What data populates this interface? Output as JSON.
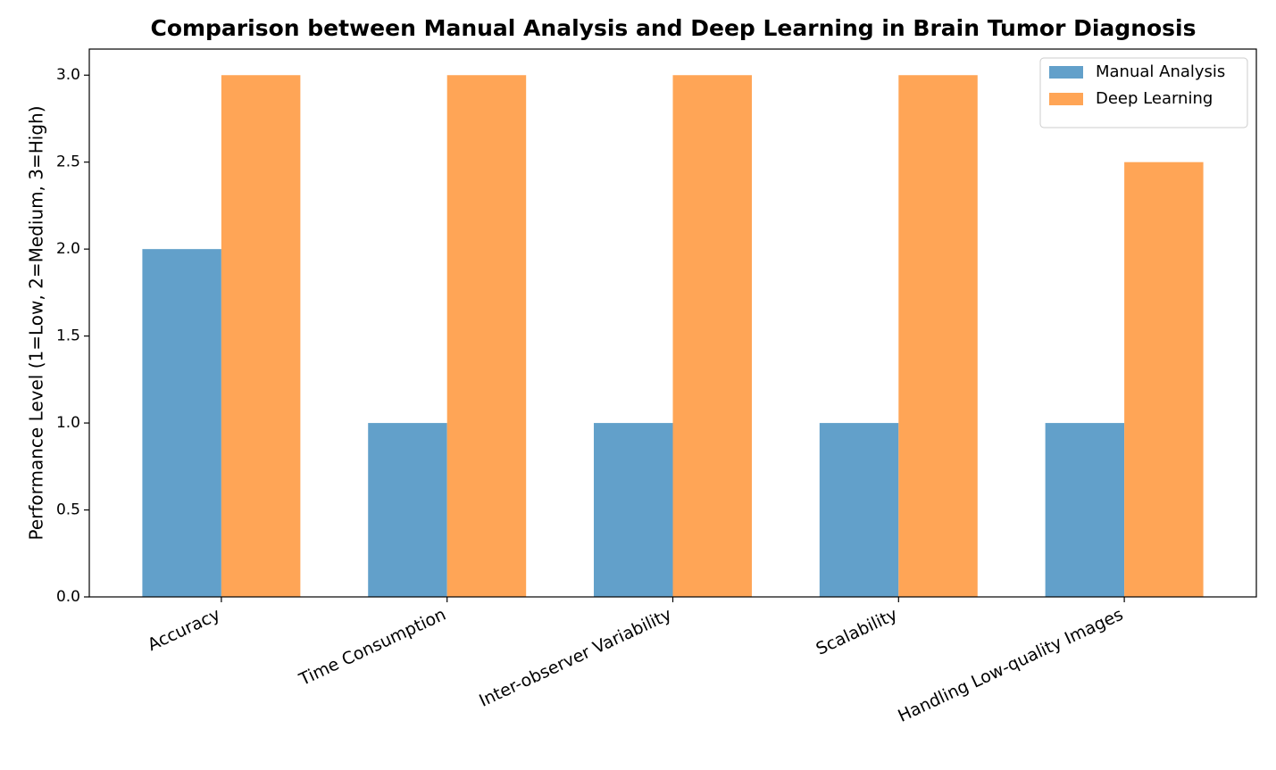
{
  "chart_data": {
    "type": "bar",
    "title": "Comparison between Manual Analysis and Deep Learning in Brain Tumor Diagnosis",
    "y_label": "Performance Level (1=Low, 2=Medium, 3=High)",
    "categories": [
      "Accuracy",
      "Time Consumption",
      "Inter-observer Variability",
      "Scalability",
      "Handling Low-quality Images"
    ],
    "series": [
      {
        "name": "Manual Analysis",
        "color": "#62a0ca",
        "values": [
          2,
          1,
          1,
          1,
          1
        ]
      },
      {
        "name": "Deep Learning",
        "color": "#ffa556",
        "values": [
          3,
          3,
          3,
          3,
          2.5
        ]
      }
    ],
    "ylim": [
      0,
      3.15
    ],
    "yticks": [
      {
        "value": 0,
        "label": "0.0"
      },
      {
        "value": 0.5,
        "label": "0.5"
      },
      {
        "value": 1,
        "label": "1.0"
      },
      {
        "value": 1.5,
        "label": "1.5"
      },
      {
        "value": 2,
        "label": "2.0"
      },
      {
        "value": 2.5,
        "label": "2.5"
      },
      {
        "value": 3,
        "label": "3.0"
      }
    ],
    "legend": "upper right"
  }
}
